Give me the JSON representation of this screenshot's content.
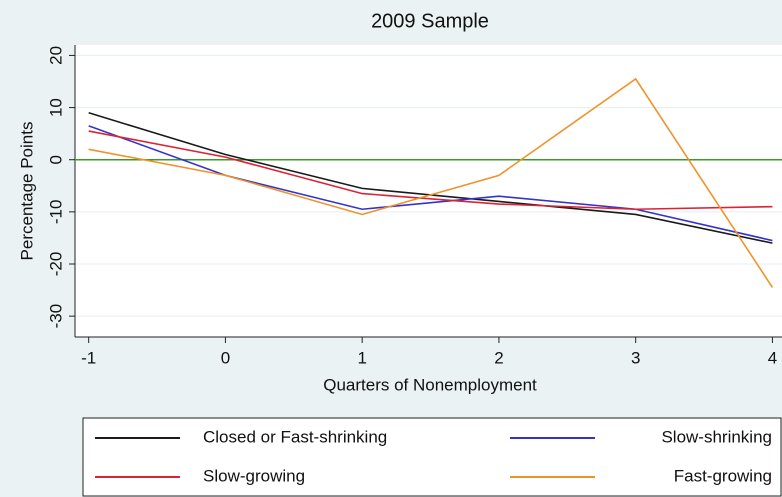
{
  "chart_data": {
    "type": "line",
    "title": "2009 Sample",
    "x_label": "Quarters of Nonemployment",
    "y_label": "Percentage Points",
    "x": [
      -1,
      0,
      1,
      2,
      3,
      4
    ],
    "series": [
      {
        "name": "Closed or Fast-shrinking",
        "color": "#1a1a1a",
        "values": [
          9,
          1,
          -5.5,
          -8,
          -10.5,
          -16
        ]
      },
      {
        "name": "Slow-shrinking",
        "color": "#3333cc",
        "values": [
          6.5,
          -3,
          -9.5,
          -7,
          -9.5,
          -15.5
        ]
      },
      {
        "name": "Slow-growing",
        "color": "#dd2233",
        "values": [
          5.5,
          0.5,
          -6.5,
          -8.5,
          -9.5,
          -9
        ]
      },
      {
        "name": "Fast-growing",
        "color": "#f0922a",
        "values": [
          2,
          -3,
          -10.5,
          -3,
          15.5,
          -24.5
        ]
      }
    ],
    "reference_line": {
      "value": 0,
      "color": "#3c9a2a"
    },
    "xlim": [
      -1.1,
      4.07
    ],
    "ylim": [
      -34,
      22
    ],
    "xticks": [
      -1,
      0,
      1,
      2,
      3,
      4
    ],
    "yticks": [
      -30,
      -20,
      -10,
      0,
      10,
      20
    ],
    "grid": true
  }
}
